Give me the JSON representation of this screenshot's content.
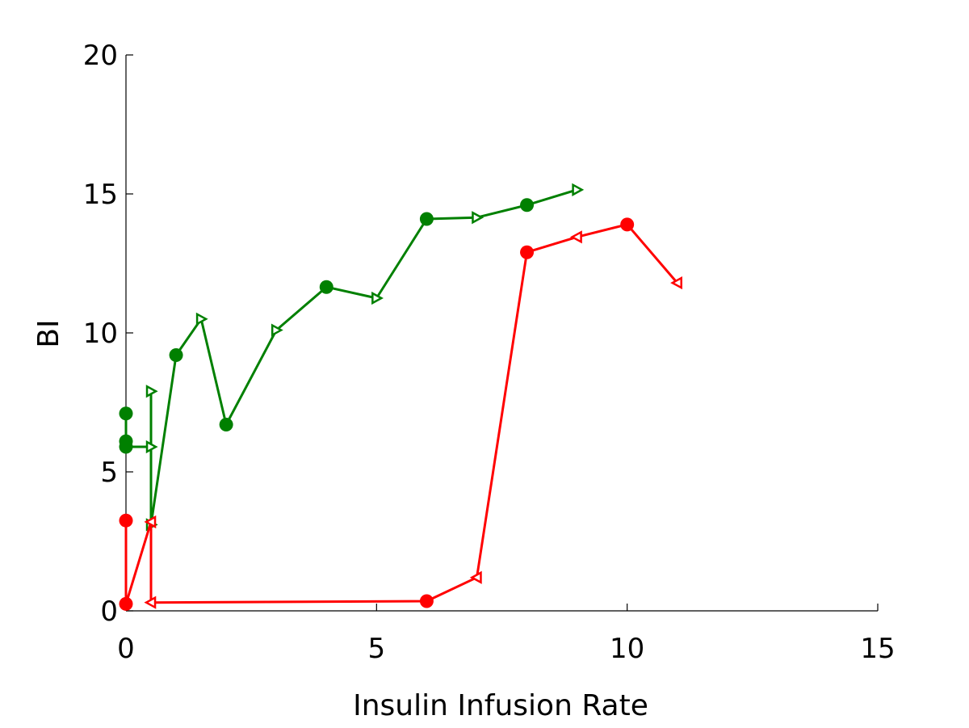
{
  "chart_data": {
    "type": "line",
    "title": "",
    "xlabel": "Insulin Infusion Rate",
    "ylabel": "BI",
    "xlim": [
      0,
      15
    ],
    "ylim": [
      0,
      20
    ],
    "xticks": [
      "0",
      "5",
      "10",
      "15"
    ],
    "yticks": [
      "0",
      "5",
      "10",
      "15",
      "20"
    ],
    "grid": false,
    "legend": "none",
    "series": [
      {
        "color": "#008000",
        "points": [
          {
            "x": 0,
            "y": 7.1,
            "marker": "circle"
          },
          {
            "x": 0,
            "y": 6.1,
            "marker": "circle"
          },
          {
            "x": 0,
            "y": 5.9,
            "marker": "circle"
          },
          {
            "x": 0.5,
            "y": 5.9,
            "marker": "triangle-right"
          },
          {
            "x": 0.5,
            "y": 7.9,
            "marker": "triangle-right"
          },
          {
            "x": 0.5,
            "y": 3.1,
            "marker": "triangle-right"
          },
          {
            "x": 1,
            "y": 9.2,
            "marker": "circle"
          },
          {
            "x": 1.5,
            "y": 10.5,
            "marker": "triangle-right"
          },
          {
            "x": 2,
            "y": 6.7,
            "marker": "circle"
          },
          {
            "x": 3,
            "y": 10.1,
            "marker": "triangle-right"
          },
          {
            "x": 4,
            "y": 11.65,
            "marker": "circle"
          },
          {
            "x": 5,
            "y": 11.25,
            "marker": "triangle-right"
          },
          {
            "x": 6,
            "y": 14.1,
            "marker": "circle"
          },
          {
            "x": 7,
            "y": 14.15,
            "marker": "triangle-right"
          },
          {
            "x": 8,
            "y": 14.6,
            "marker": "circle"
          },
          {
            "x": 9,
            "y": 15.15,
            "marker": "triangle-right"
          }
        ]
      },
      {
        "color": "#ff0000",
        "points": [
          {
            "x": 0,
            "y": 3.25,
            "marker": "circle"
          },
          {
            "x": 0,
            "y": 0.25,
            "marker": "circle"
          },
          {
            "x": 0.5,
            "y": 3.2,
            "marker": "triangle-left"
          },
          {
            "x": 0.5,
            "y": 0.3,
            "marker": "triangle-left"
          },
          {
            "x": 6,
            "y": 0.35,
            "marker": "circle"
          },
          {
            "x": 7,
            "y": 1.2,
            "marker": "triangle-left"
          },
          {
            "x": 8,
            "y": 12.9,
            "marker": "circle"
          },
          {
            "x": 9,
            "y": 13.45,
            "marker": "triangle-left"
          },
          {
            "x": 10,
            "y": 13.9,
            "marker": "circle"
          },
          {
            "x": 11,
            "y": 11.8,
            "marker": "triangle-left"
          }
        ]
      }
    ]
  }
}
